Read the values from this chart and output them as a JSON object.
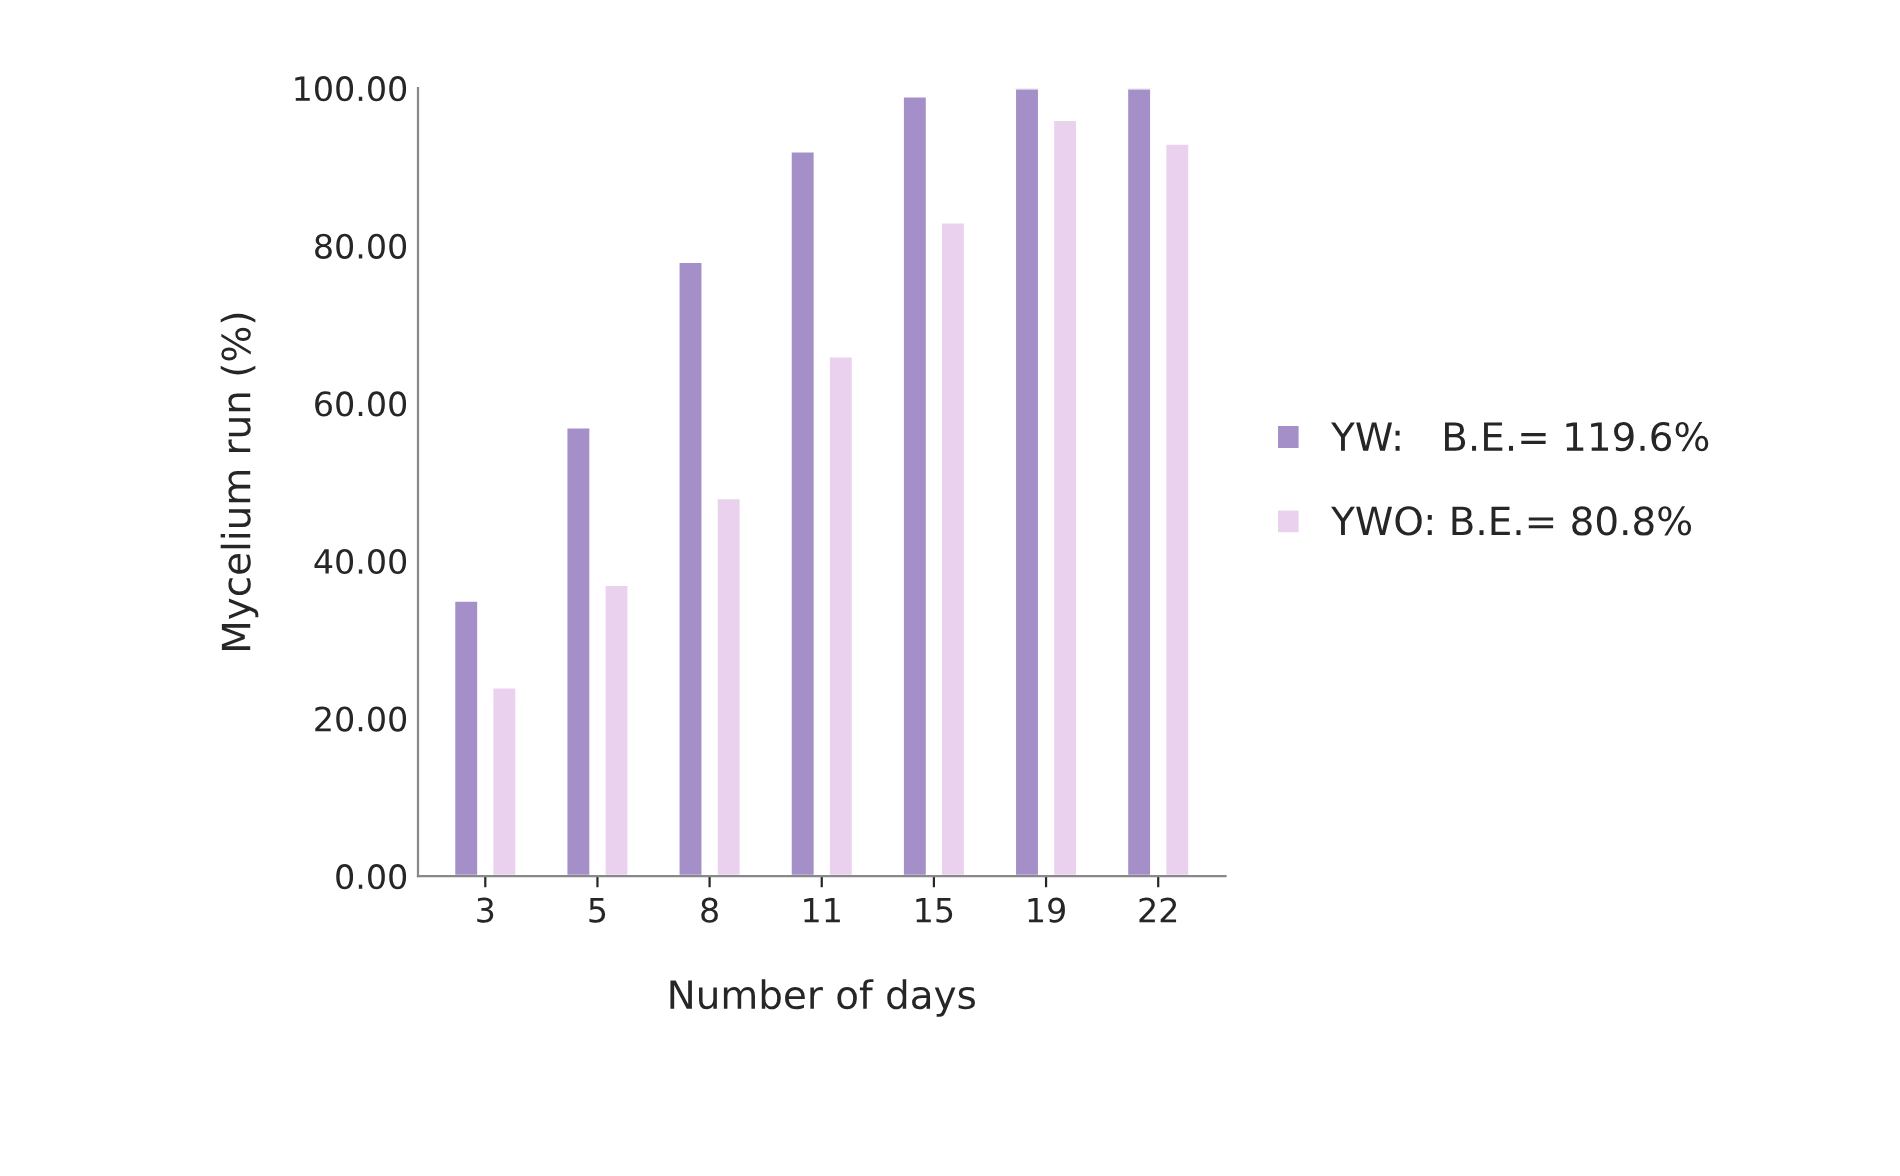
{
  "chart_data": {
    "type": "bar",
    "xlabel": "Number of days",
    "ylabel": "Mycelium run (%)",
    "categories": [
      "3",
      "5",
      "8",
      "11",
      "15",
      "19",
      "22"
    ],
    "series": [
      {
        "name": "YW:   B.E.= 119.6%",
        "color": "#a48fc8",
        "values": [
          35,
          57,
          78,
          92,
          99,
          100,
          100
        ]
      },
      {
        "name": "YWO: B.E.= 80.8%",
        "color": "#ead2ee",
        "values": [
          24,
          37,
          48,
          66,
          83,
          96,
          93
        ]
      }
    ],
    "ylim": [
      0,
      100
    ],
    "yticks": [
      {
        "value": 0,
        "label": "0.00"
      },
      {
        "value": 20,
        "label": "20.00"
      },
      {
        "value": 40,
        "label": "40.00"
      },
      {
        "value": 60,
        "label": "60.00"
      },
      {
        "value": 80,
        "label": "80.00"
      },
      {
        "value": 100,
        "label": "100.00"
      }
    ],
    "grid": false,
    "legend": "right"
  }
}
